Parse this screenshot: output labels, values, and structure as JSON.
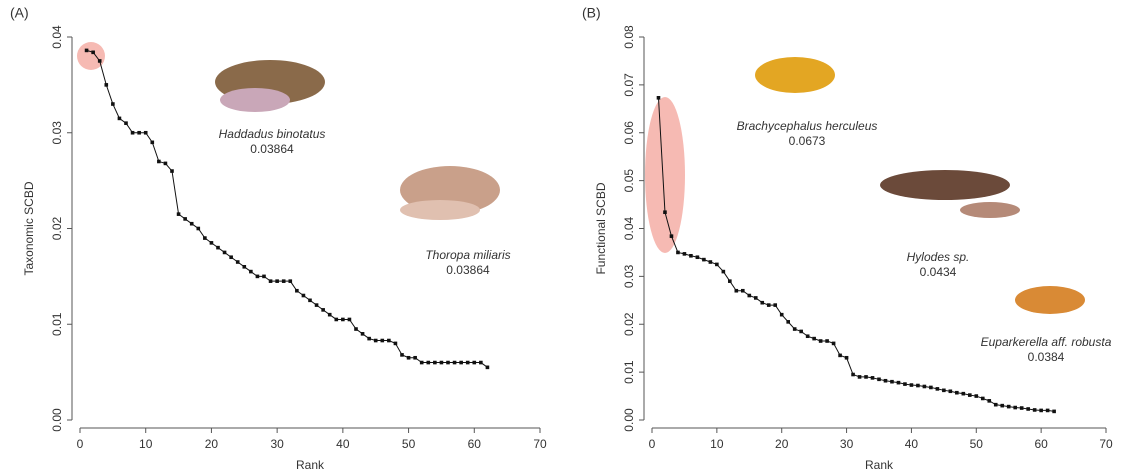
{
  "chart_data": [
    {
      "type": "line",
      "panel_label": "(A)",
      "xlabel": "Rank",
      "ylabel": "Taxonomic SCBD",
      "xlim": [
        0,
        70
      ],
      "xticks": [
        0,
        10,
        20,
        30,
        40,
        50,
        60,
        70
      ],
      "ylim": [
        0,
        0.04
      ],
      "yticks": [
        {
          "value": 0,
          "label": "0.00"
        },
        0.01,
        0.02,
        0.03,
        0.04
      ],
      "color": "#111111",
      "x": [
        1,
        2,
        3,
        4,
        5,
        6,
        7,
        8,
        9,
        10,
        11,
        12,
        13,
        14,
        15,
        16,
        17,
        18,
        19,
        20,
        21,
        22,
        23,
        24,
        25,
        26,
        27,
        28,
        29,
        30,
        31,
        32,
        33,
        34,
        35,
        36,
        37,
        38,
        39,
        40,
        41,
        42,
        43,
        44,
        45,
        46,
        47,
        48,
        49,
        50,
        51,
        52,
        53,
        54,
        55,
        56,
        57,
        58,
        59,
        60,
        61,
        62
      ],
      "values": [
        0.0386,
        0.0384,
        0.0375,
        0.035,
        0.033,
        0.0315,
        0.031,
        0.03,
        0.03,
        0.03,
        0.029,
        0.027,
        0.0268,
        0.026,
        0.0215,
        0.021,
        0.0205,
        0.02,
        0.019,
        0.0185,
        0.018,
        0.0175,
        0.017,
        0.0165,
        0.016,
        0.0155,
        0.015,
        0.015,
        0.0145,
        0.0145,
        0.0145,
        0.0145,
        0.0135,
        0.013,
        0.0125,
        0.012,
        0.0115,
        0.011,
        0.0105,
        0.0105,
        0.0105,
        0.0095,
        0.009,
        0.0085,
        0.0083,
        0.0083,
        0.0083,
        0.008,
        0.0068,
        0.0065,
        0.0065,
        0.006,
        0.006,
        0.006,
        0.006,
        0.006,
        0.006,
        0.006,
        0.006,
        0.006,
        0.006,
        0.0055
      ],
      "annotations": [
        {
          "species": "Haddadus binotatus",
          "value": 0.03864
        },
        {
          "species": "Thoropa miliaris",
          "value": 0.03864
        }
      ]
    },
    {
      "type": "line",
      "panel_label": "(B)",
      "xlabel": "Rank",
      "ylabel": "Functional SCBD",
      "xlim": [
        0,
        70
      ],
      "xticks": [
        0,
        10,
        20,
        30,
        40,
        50,
        60,
        70
      ],
      "ylim": [
        0,
        0.08
      ],
      "yticks": [
        {
          "value": 0,
          "label": "0.00"
        },
        0.01,
        0.02,
        0.03,
        0.04,
        0.05,
        0.06,
        0.07,
        0.08
      ],
      "color": "#111111",
      "x": [
        1,
        2,
        3,
        4,
        5,
        6,
        7,
        8,
        9,
        10,
        11,
        12,
        13,
        14,
        15,
        16,
        17,
        18,
        19,
        20,
        21,
        22,
        23,
        24,
        25,
        26,
        27,
        28,
        29,
        30,
        31,
        32,
        33,
        34,
        35,
        36,
        37,
        38,
        39,
        40,
        41,
        42,
        43,
        44,
        45,
        46,
        47,
        48,
        49,
        50,
        51,
        52,
        53,
        54,
        55,
        56,
        57,
        58,
        59,
        60,
        61,
        62
      ],
      "values": [
        0.0673,
        0.0434,
        0.0384,
        0.035,
        0.0347,
        0.0343,
        0.034,
        0.0335,
        0.033,
        0.0325,
        0.031,
        0.029,
        0.027,
        0.027,
        0.026,
        0.0255,
        0.0245,
        0.024,
        0.024,
        0.022,
        0.0205,
        0.019,
        0.0185,
        0.0175,
        0.017,
        0.0165,
        0.0165,
        0.016,
        0.0135,
        0.013,
        0.0095,
        0.009,
        0.009,
        0.0088,
        0.0085,
        0.0082,
        0.008,
        0.0078,
        0.0075,
        0.0073,
        0.0072,
        0.007,
        0.0068,
        0.0065,
        0.0062,
        0.006,
        0.0057,
        0.0055,
        0.0052,
        0.005,
        0.0045,
        0.004,
        0.0032,
        0.003,
        0.0028,
        0.0026,
        0.0025,
        0.0023,
        0.0021,
        0.002,
        0.002,
        0.0018
      ],
      "annotations": [
        {
          "species": "Brachycephalus herculeus",
          "value": 0.0673
        },
        {
          "species": "Hylodes sp.",
          "value": 0.0434
        },
        {
          "species": "Euparkerella aff. robusta",
          "value": 0.0384
        }
      ]
    }
  ]
}
